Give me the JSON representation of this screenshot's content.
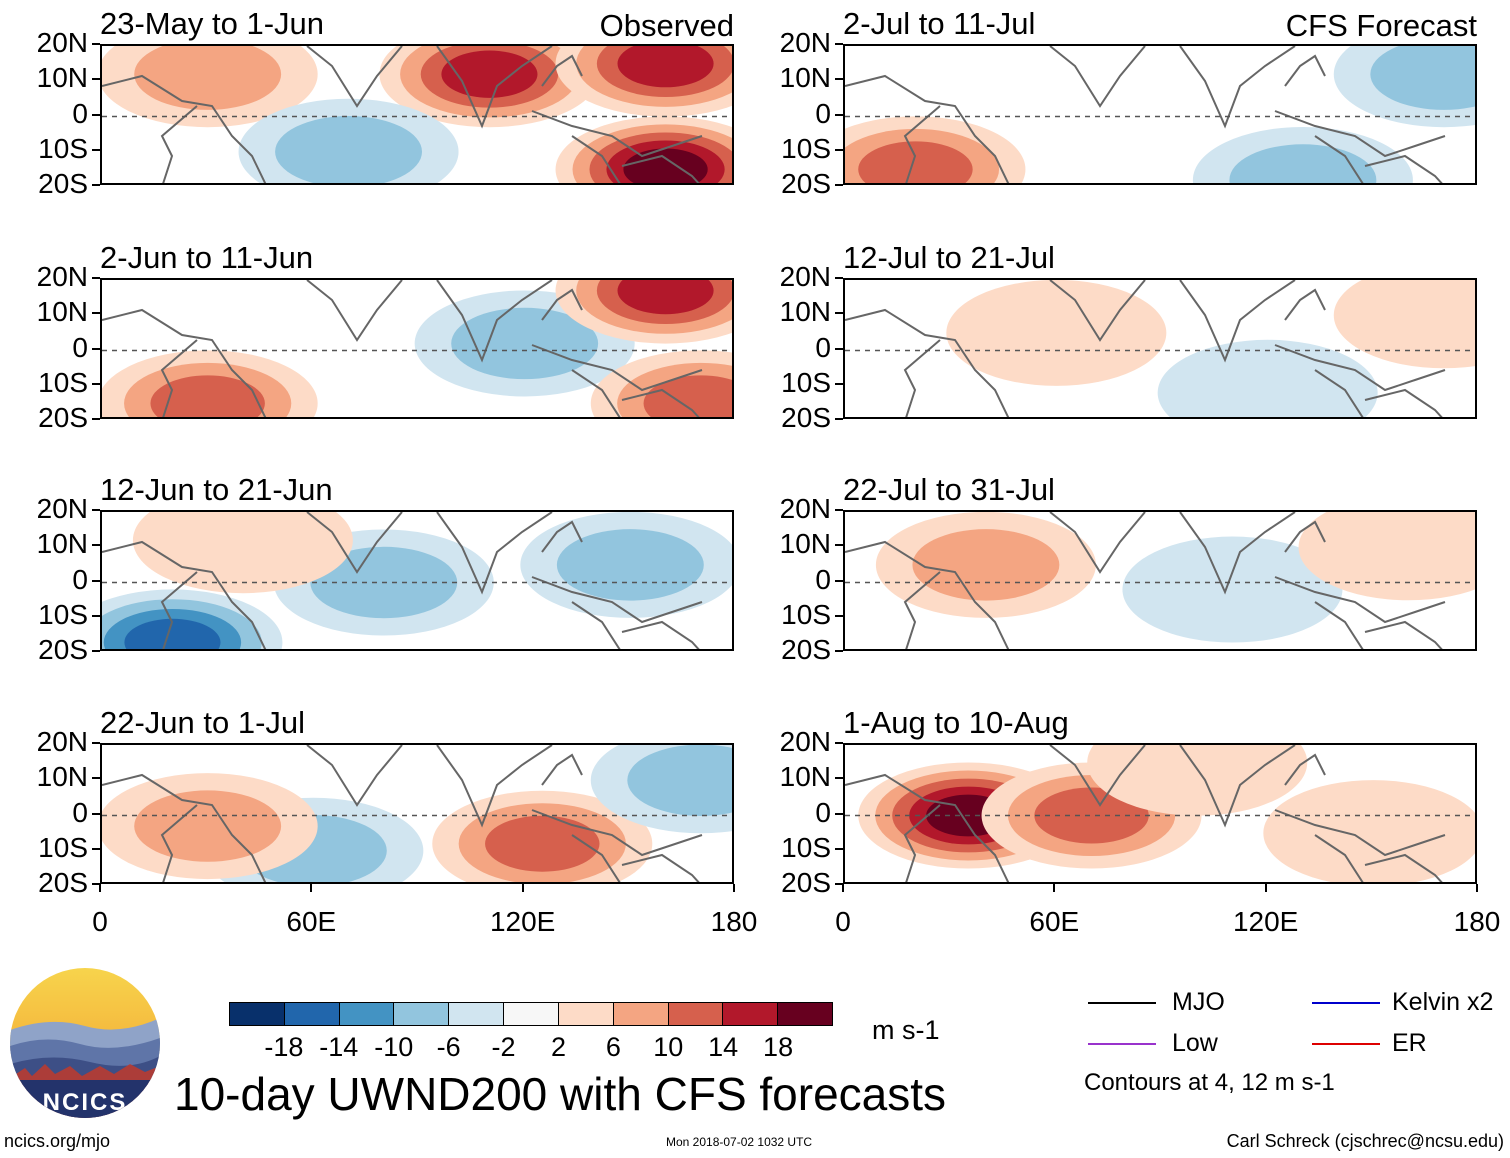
{
  "title": "10-day UWND200 with CFS forecasts",
  "units": "m s-1",
  "site": "ncics.org/mjo",
  "timestamp": "Mon 2018-07-02 1032 UTC",
  "author": "Carl Schreck (cjschrec@ncsu.edu)",
  "logo_text": "NCICS",
  "observed_label": "Observed",
  "forecast_label": "CFS Forecast",
  "colorbar": {
    "colors": [
      "#08306b",
      "#2166ac",
      "#4393c3",
      "#92c5de",
      "#d1e5f0",
      "#f7f7f7",
      "#fddbc7",
      "#f4a582",
      "#d6604d",
      "#b2182b",
      "#67001f"
    ],
    "labels": [
      "-18",
      "-14",
      "-10",
      "-6",
      "-2",
      "2",
      "6",
      "10",
      "14",
      "18"
    ]
  },
  "legend": {
    "items": [
      {
        "label": "MJO",
        "color": "#000000"
      },
      {
        "label": "Kelvin x2",
        "color": "#0000cc"
      },
      {
        "label": "Low",
        "color": "#9933cc"
      },
      {
        "label": "ER",
        "color": "#dd0000"
      }
    ],
    "note": "Contours at 4, 12 m s-1"
  },
  "axes": {
    "ylabels": [
      "20N",
      "10N",
      "0",
      "10S",
      "20S"
    ],
    "xlabels": [
      "0",
      "60E",
      "120E",
      "180"
    ]
  },
  "chart_data": [
    {
      "type": "heatmap",
      "column": "observed",
      "title": "23-May to 1-Jun",
      "lon_range": [
        0,
        180
      ],
      "lat_range": [
        -20,
        20
      ],
      "variable": "200-hPa zonal wind anomaly (m s-1)",
      "features": [
        {
          "lon": 110,
          "lat": 12,
          "value": 14
        },
        {
          "lon": 160,
          "lat": 15,
          "value": 14
        },
        {
          "lon": 160,
          "lat": -15,
          "value": 18
        },
        {
          "lon": 30,
          "lat": 12,
          "value": 6
        },
        {
          "lon": 70,
          "lat": -10,
          "value": -6
        }
      ]
    },
    {
      "type": "heatmap",
      "column": "observed",
      "title": "2-Jun to 11-Jun",
      "lon_range": [
        0,
        180
      ],
      "lat_range": [
        -20,
        20
      ],
      "variable": "200-hPa zonal wind anomaly (m s-1)",
      "features": [
        {
          "lon": 120,
          "lat": 2,
          "value": -6
        },
        {
          "lon": 30,
          "lat": -15,
          "value": 10
        },
        {
          "lon": 160,
          "lat": 17,
          "value": 14
        },
        {
          "lon": 170,
          "lat": -15,
          "value": 10
        }
      ]
    },
    {
      "type": "heatmap",
      "column": "observed",
      "title": "12-Jun to 21-Jun",
      "lon_range": [
        0,
        180
      ],
      "lat_range": [
        -20,
        20
      ],
      "variable": "200-hPa zonal wind anomaly (m s-1)",
      "features": [
        {
          "lon": 20,
          "lat": -17,
          "value": -14
        },
        {
          "lon": 80,
          "lat": 0,
          "value": -6
        },
        {
          "lon": 150,
          "lat": 5,
          "value": -6
        },
        {
          "lon": 40,
          "lat": 12,
          "value": 2
        }
      ]
    },
    {
      "type": "heatmap",
      "column": "observed",
      "title": "22-Jun to 1-Jul",
      "lon_range": [
        0,
        180
      ],
      "lat_range": [
        -20,
        20
      ],
      "variable": "200-hPa zonal wind anomaly (m s-1)",
      "features": [
        {
          "lon": 125,
          "lat": -8,
          "value": 10
        },
        {
          "lon": 60,
          "lat": -10,
          "value": -6
        },
        {
          "lon": 30,
          "lat": -3,
          "value": 6
        },
        {
          "lon": 170,
          "lat": 10,
          "value": -6
        }
      ]
    },
    {
      "type": "heatmap",
      "column": "forecast",
      "title": "2-Jul to 11-Jul",
      "lon_range": [
        0,
        180
      ],
      "lat_range": [
        -20,
        20
      ],
      "variable": "200-hPa zonal wind anomaly (m s-1)",
      "features": [
        {
          "lon": 20,
          "lat": -15,
          "value": 10
        },
        {
          "lon": 130,
          "lat": -18,
          "value": -6
        },
        {
          "lon": 170,
          "lat": 12,
          "value": -6
        }
      ]
    },
    {
      "type": "heatmap",
      "column": "forecast",
      "title": "12-Jul to 21-Jul",
      "lon_range": [
        0,
        180
      ],
      "lat_range": [
        -20,
        20
      ],
      "variable": "200-hPa zonal wind anomaly (m s-1)",
      "features": [
        {
          "lon": 60,
          "lat": 5,
          "value": 2
        },
        {
          "lon": 120,
          "lat": -12,
          "value": -2
        },
        {
          "lon": 170,
          "lat": 10,
          "value": 2
        }
      ]
    },
    {
      "type": "heatmap",
      "column": "forecast",
      "title": "22-Jul to 31-Jul",
      "lon_range": [
        0,
        180
      ],
      "lat_range": [
        -20,
        20
      ],
      "variable": "200-hPa zonal wind anomaly (m s-1)",
      "features": [
        {
          "lon": 40,
          "lat": 5,
          "value": 6
        },
        {
          "lon": 110,
          "lat": -2,
          "value": -2
        },
        {
          "lon": 160,
          "lat": 10,
          "value": 2
        }
      ]
    },
    {
      "type": "heatmap",
      "column": "forecast",
      "title": "1-Aug to 10-Aug",
      "lon_range": [
        0,
        180
      ],
      "lat_range": [
        -20,
        20
      ],
      "variable": "200-hPa zonal wind anomaly (m s-1)",
      "features": [
        {
          "lon": 35,
          "lat": 0,
          "value": 18
        },
        {
          "lon": 70,
          "lat": 0,
          "value": 10
        },
        {
          "lon": 150,
          "lat": -5,
          "value": 2
        },
        {
          "lon": 100,
          "lat": 15,
          "value": 2
        }
      ]
    }
  ]
}
